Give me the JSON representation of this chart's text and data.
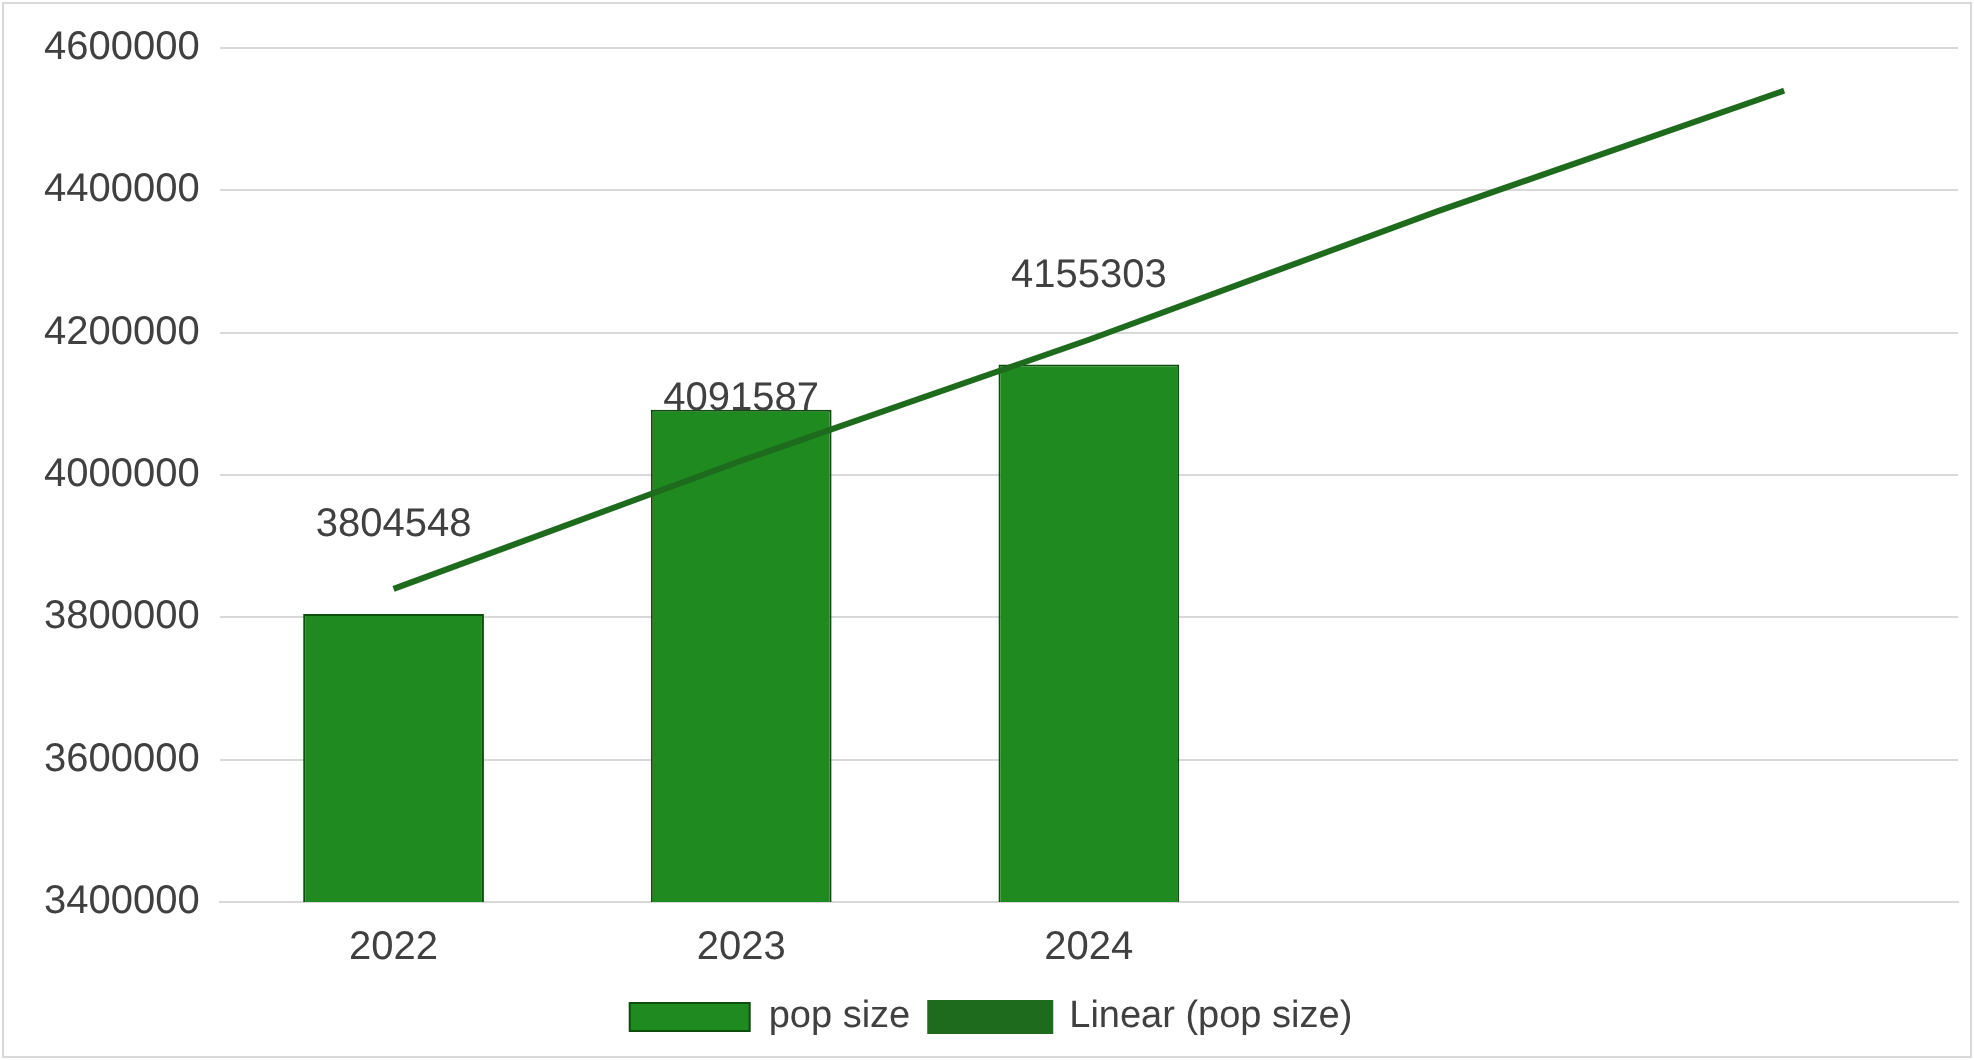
{
  "chart_data": {
    "type": "bar",
    "categories": [
      "2022",
      "2023",
      "2024",
      null,
      null
    ],
    "series": [
      {
        "name": "pop size",
        "color": "#1f8a1f",
        "values": [
          3804548,
          4091587,
          4155303,
          null,
          null
        ],
        "value_labels": [
          "3804548",
          "4091587",
          "4155303",
          null,
          null
        ]
      },
      {
        "name": "Linear (pop size)",
        "type": "line",
        "color": "#1e6b1e",
        "values": [
          3840000,
          4020000,
          4190000,
          4370000,
          4540000
        ]
      }
    ],
    "ylim": [
      3400000,
      4600000
    ],
    "yticks": [
      3400000,
      3600000,
      3800000,
      4000000,
      4200000,
      4400000,
      4600000
    ],
    "grid": "y",
    "legend": "bottom",
    "marker": "none"
  }
}
